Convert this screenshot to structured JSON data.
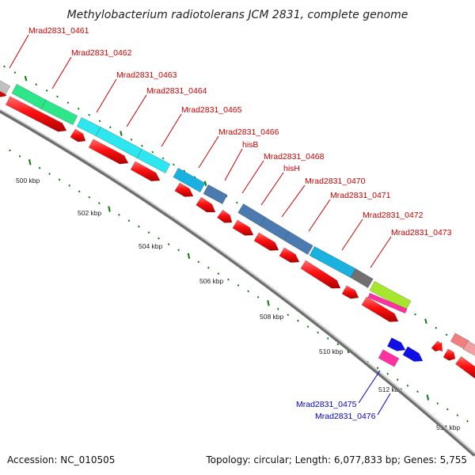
{
  "title": "Methylobacterium radiotolerans JCM 2831, complete genome",
  "footer": {
    "accession": "Accession: NC_010505",
    "topology": "Topology: circular; Length: 6,077,833 bp; Genes: 5,755"
  },
  "colors": {
    "background": "#ffffff",
    "backbone": "#8c8c8c",
    "cds_red": "#ff1010",
    "forward_label": "#cc0000",
    "reverse_label": "#0000cc",
    "tick": "#0a7a0a"
  },
  "scale_labels": [
    "500 kbp",
    "502 kbp",
    "504 kbp",
    "506 kbp",
    "508 kbp",
    "510 kbp",
    "512 kbp",
    "514 kbp"
  ],
  "forward_genes": [
    {
      "label": "Mrad2831_0461",
      "color": "#2ee68a"
    },
    {
      "label": "Mrad2831_0462",
      "color": "#2ee68a"
    },
    {
      "label": "Mrad2831_0463",
      "color": "#2ee6ee"
    },
    {
      "label": "Mrad2831_0464",
      "color": "#2ee6ee"
    },
    {
      "label": "Mrad2831_0465",
      "color": "#2ee6ee"
    },
    {
      "label": "Mrad2831_0466",
      "color": "#1ab0e0"
    },
    {
      "label": "hisB",
      "color": "#4a7ab0"
    },
    {
      "label": "Mrad2831_0468",
      "color": "#4a7ab0"
    },
    {
      "label": "hisH",
      "color": "#4a7ab0"
    },
    {
      "label": "Mrad2831_0470",
      "color": "#4a7ab0"
    },
    {
      "label": "Mrad2831_0471",
      "color": "#1ab0e0"
    },
    {
      "label": "Mrad2831_0472",
      "color": "#707070"
    },
    {
      "label": "Mrad2831_0473",
      "color": "#a6e62e"
    }
  ],
  "reverse_genes": [
    {
      "label": "Mrad2831_0475",
      "color": "#1010e6"
    },
    {
      "label": "Mrad2831_0476",
      "color": "#ff30a0"
    }
  ]
}
